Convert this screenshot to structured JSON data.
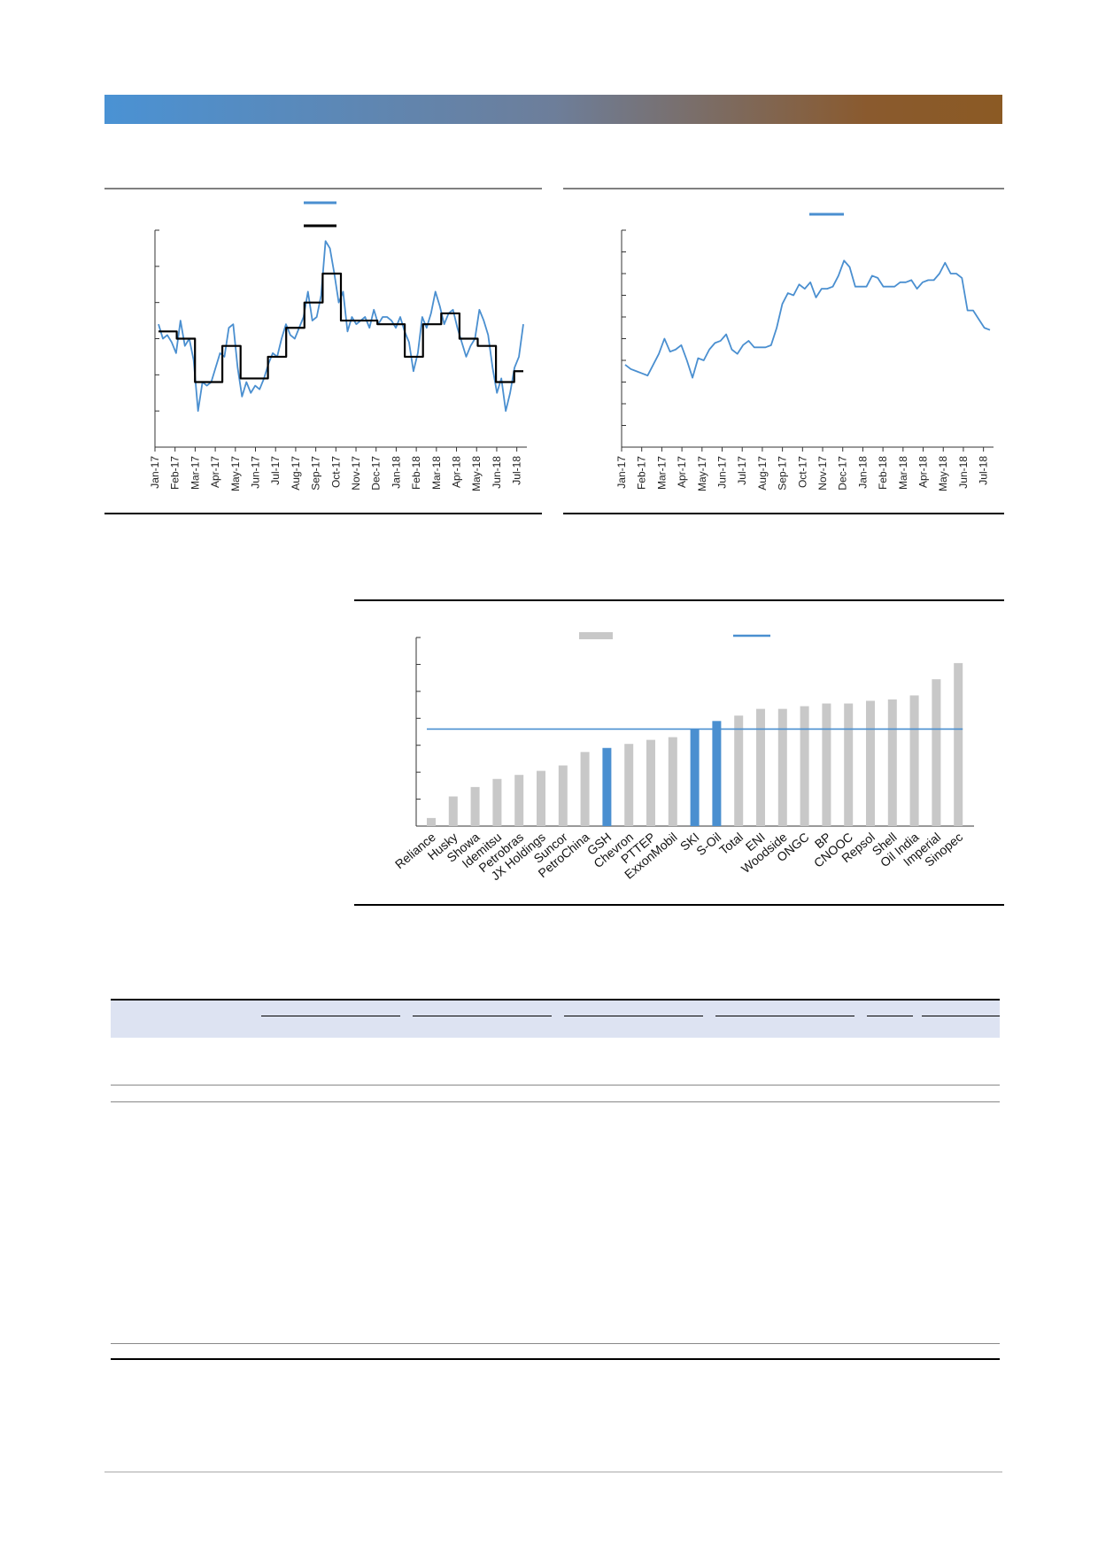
{
  "colors": {
    "banner_left": "#4a92d4",
    "banner_right": "#8b5a24",
    "series_blue": "#4a8fd0",
    "series_black": "#000000",
    "bar_gray": "#c8c8c8",
    "bar_highlight": "#4a8fd0",
    "table_header_bg": "#dde3f2"
  },
  "chart_data": [
    {
      "type": "line",
      "x_ticks": [
        "Jan-17",
        "Feb-17",
        "Mar-17",
        "Apr-17",
        "May-17",
        "Jun-17",
        "Jul-17",
        "Aug-17",
        "Sep-17",
        "Oct-17",
        "Nov-17",
        "Dec-17",
        "Jan-18",
        "Feb-18",
        "Mar-18",
        "Apr-18",
        "May-18",
        "Jun-18",
        "Jul-18"
      ],
      "legend": [
        "blue-line",
        "black-step-line"
      ],
      "legend_placement": "top-center",
      "ylim": [
        0,
        6
      ],
      "series": [
        {
          "color": "#4a8fd0",
          "values": [
            3.4,
            3.0,
            3.1,
            2.9,
            2.6,
            3.5,
            2.8,
            3.0,
            2.4,
            1.0,
            1.8,
            1.7,
            1.8,
            2.2,
            2.6,
            2.5,
            3.3,
            3.4,
            2.2,
            1.4,
            1.8,
            1.5,
            1.7,
            1.6,
            1.9,
            2.3,
            2.6,
            2.5,
            3.0,
            3.4,
            3.1,
            3.0,
            3.3,
            3.6,
            4.3,
            3.5,
            3.6,
            4.2,
            5.7,
            5.5,
            4.8,
            4.0,
            4.3,
            3.2,
            3.6,
            3.4,
            3.5,
            3.6,
            3.3,
            3.8,
            3.4,
            3.6,
            3.6,
            3.5,
            3.3,
            3.6,
            3.2,
            2.9,
            2.1,
            2.6,
            3.6,
            3.3,
            3.7,
            4.3,
            3.9,
            3.4,
            3.7,
            3.8,
            3.3,
            2.9,
            2.5,
            2.8,
            3.0,
            3.8,
            3.5,
            3.1,
            2.2,
            1.5,
            1.9,
            1.0,
            1.5,
            2.2,
            2.5,
            3.4
          ]
        },
        {
          "color": "#000000",
          "step": true,
          "values": [
            3.2,
            3.2,
            3.0,
            3.0,
            1.8,
            1.8,
            1.8,
            2.8,
            2.8,
            1.9,
            1.9,
            1.9,
            2.5,
            2.5,
            3.3,
            3.3,
            4.0,
            4.0,
            4.8,
            4.8,
            3.5,
            3.5,
            3.5,
            3.5,
            3.4,
            3.4,
            3.4,
            2.5,
            2.5,
            3.4,
            3.4,
            3.7,
            3.7,
            3.0,
            3.0,
            2.8,
            2.8,
            1.8,
            1.8,
            2.1,
            2.1
          ]
        }
      ]
    },
    {
      "type": "line",
      "x_ticks": [
        "Jan-17",
        "Feb-17",
        "Mar-17",
        "Apr-17",
        "May-17",
        "Jun-17",
        "Jul-17",
        "Aug-17",
        "Sep-17",
        "Oct-17",
        "Nov-17",
        "Dec-17",
        "Jan-18",
        "Feb-18",
        "Mar-18",
        "Apr-18",
        "May-18",
        "Jun-18",
        "Jul-18"
      ],
      "legend": [
        "blue-line"
      ],
      "legend_placement": "top-center",
      "ylim": [
        0,
        10
      ],
      "series": [
        {
          "color": "#4a8fd0",
          "values": [
            3.8,
            3.6,
            3.5,
            3.4,
            3.3,
            3.8,
            4.3,
            5.0,
            4.4,
            4.5,
            4.7,
            4.0,
            3.2,
            4.1,
            4.0,
            4.5,
            4.8,
            4.9,
            5.2,
            4.5,
            4.3,
            4.7,
            4.9,
            4.6,
            4.6,
            4.6,
            4.7,
            5.5,
            6.6,
            7.1,
            7.0,
            7.5,
            7.3,
            7.6,
            6.9,
            7.3,
            7.3,
            7.4,
            7.9,
            8.6,
            8.3,
            7.4,
            7.4,
            7.4,
            7.9,
            7.8,
            7.4,
            7.4,
            7.4,
            7.6,
            7.6,
            7.7,
            7.3,
            7.6,
            7.7,
            7.7,
            8.0,
            8.5,
            8.0,
            8.0,
            7.8,
            6.3,
            6.3,
            5.9,
            5.5,
            5.4
          ]
        }
      ]
    },
    {
      "type": "bar",
      "categories": [
        "Reliance",
        "Husky",
        "Showa",
        "Idemitsu",
        "Petrobras",
        "JX Holdings",
        "Suncor",
        "PetroChina",
        "GSH",
        "Chevron",
        "PTTEP",
        "ExxonMobil",
        "SKI",
        "S-Oil",
        "Total",
        "ENI",
        "Woodside",
        "ONGC",
        "BP",
        "CNOOC",
        "Repsol",
        "Shell",
        "Oil India",
        "Imperial",
        "Sinopec"
      ],
      "values": [
        0.6,
        2.2,
        2.9,
        3.5,
        3.8,
        4.1,
        4.5,
        5.5,
        5.8,
        6.1,
        6.4,
        6.6,
        7.2,
        7.8,
        8.2,
        8.7,
        8.7,
        8.9,
        9.1,
        9.1,
        9.3,
        9.4,
        9.7,
        10.9,
        12.1
      ],
      "highlight": [
        "GSH",
        "SKI",
        "S-Oil"
      ],
      "reference_line": 7.2,
      "legend": [
        "gray-bar",
        "blue-line"
      ],
      "legend_placement": "top-center",
      "ylim": [
        0,
        14
      ]
    }
  ]
}
